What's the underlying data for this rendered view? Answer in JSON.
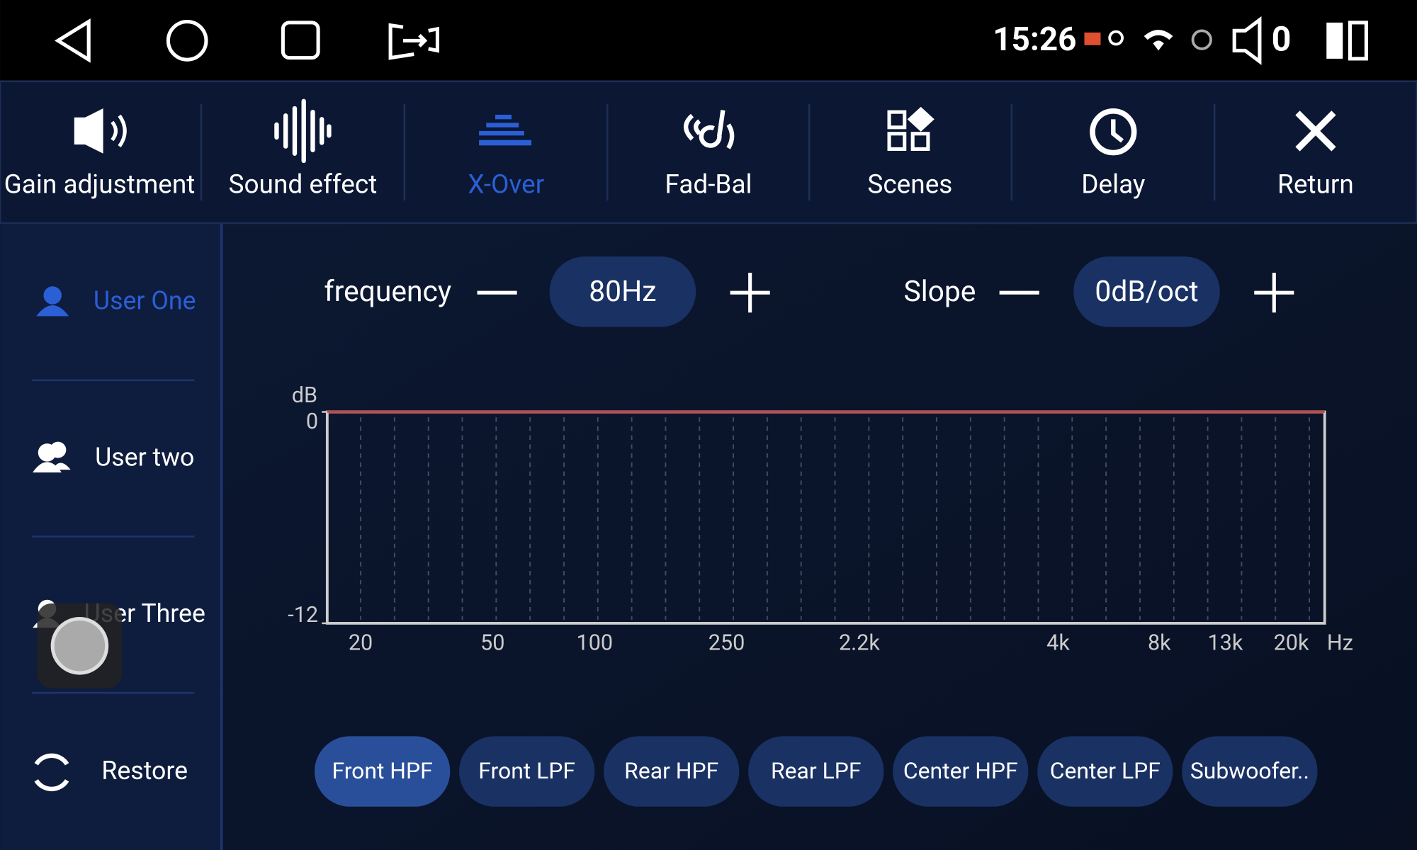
{
  "status_bar": {
    "time": "15:26",
    "volume": "0"
  },
  "tabs": [
    "Gain adjustment",
    "Sound effect",
    "X-Over",
    "Fad-Bal",
    "Scenes",
    "Delay",
    "Return"
  ],
  "users": [
    "User One",
    "User two",
    "User Three",
    "Restore"
  ],
  "frequency": {
    "label": "frequency",
    "value": "80Hz"
  },
  "slope": {
    "label": "Slope",
    "value": "0dB/oct"
  },
  "graph": {
    "y_unit": "dB",
    "yticks": [
      0,
      -12
    ],
    "xticks": [
      "20",
      "50",
      "100",
      "250",
      "2.2k",
      "4k",
      "8k",
      "13k",
      "20k"
    ],
    "x_unit": "Hz"
  },
  "filters": [
    "Front HPF",
    "Front LPF",
    "Rear HPF",
    "Rear LPF",
    "Center HPF",
    "Center LPF",
    "Subwoofer.."
  ]
}
